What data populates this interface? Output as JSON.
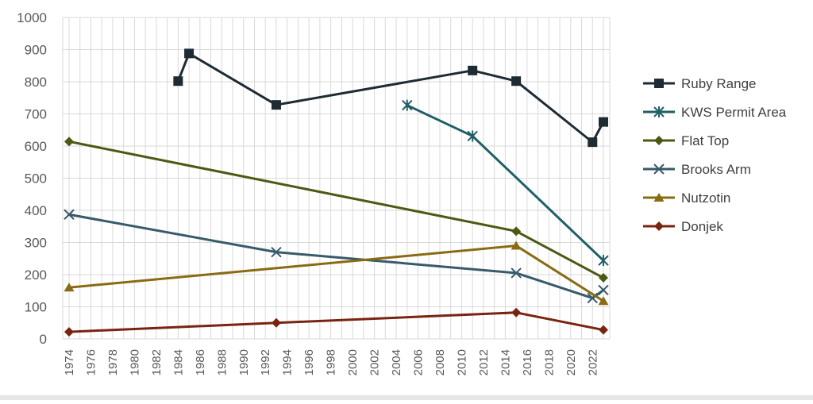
{
  "chart_data": {
    "type": "line",
    "title": "",
    "xlabel": "",
    "ylabel": "",
    "xlim": [
      1974,
      2023
    ],
    "ylim": [
      0,
      1000
    ],
    "y_ticks": [
      0,
      100,
      200,
      300,
      400,
      500,
      600,
      700,
      800,
      900,
      1000
    ],
    "x_ticks": [
      1974,
      1976,
      1978,
      1980,
      1982,
      1984,
      1986,
      1988,
      1990,
      1992,
      1994,
      1996,
      1998,
      2000,
      2002,
      2004,
      2006,
      2008,
      2010,
      2012,
      2014,
      2016,
      2018,
      2020,
      2022
    ],
    "grid": "vertical and horizontal, yearly",
    "legend_position": "right",
    "series": [
      {
        "name": "Ruby Range",
        "color": "#1e2b33",
        "marker": "square",
        "points": [
          [
            1984,
            802
          ],
          [
            1985,
            888
          ],
          [
            1993,
            728
          ],
          [
            2011,
            835
          ],
          [
            2015,
            802
          ],
          [
            2022,
            612
          ],
          [
            2023,
            675
          ]
        ]
      },
      {
        "name": "KWS Permit Area",
        "color": "#1f5f66",
        "marker": "asterisk",
        "points": [
          [
            2005,
            727
          ],
          [
            2011,
            631
          ],
          [
            2023,
            244
          ]
        ]
      },
      {
        "name": "Flat Top",
        "color": "#4a5a12",
        "marker": "diamond",
        "points": [
          [
            1974,
            614
          ],
          [
            2015,
            335
          ],
          [
            2023,
            190
          ]
        ]
      },
      {
        "name": "Brooks Arm",
        "color": "#385a6b",
        "marker": "x",
        "points": [
          [
            1974,
            387
          ],
          [
            1993,
            270
          ],
          [
            2015,
            205
          ],
          [
            2022,
            127
          ],
          [
            2023,
            152
          ]
        ]
      },
      {
        "name": "Nutzotin",
        "color": "#8a6a12",
        "marker": "triangle",
        "points": [
          [
            1974,
            160
          ],
          [
            2015,
            290
          ],
          [
            2023,
            118
          ]
        ]
      },
      {
        "name": "Donjek",
        "color": "#7a2410",
        "marker": "diamond",
        "points": [
          [
            1974,
            22
          ],
          [
            1993,
            50
          ],
          [
            2015,
            82
          ],
          [
            2023,
            28
          ]
        ]
      }
    ]
  }
}
